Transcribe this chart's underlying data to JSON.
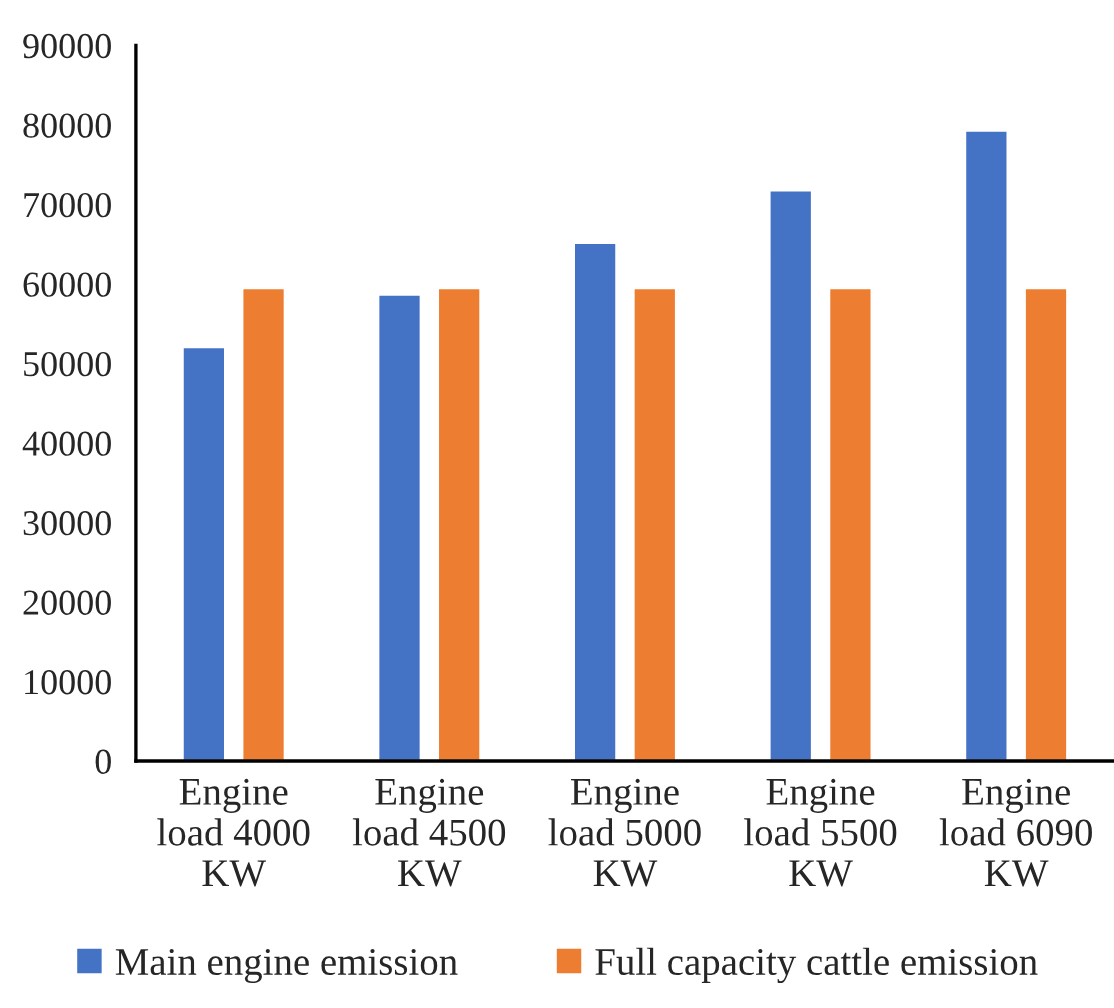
{
  "chart_data": {
    "type": "bar",
    "categories": [
      "Engine load 4000 KW",
      "Engine load 4500 KW",
      "Engine load 5000 KW",
      "Engine load 5500 KW",
      "Engine load 6090 KW"
    ],
    "series": [
      {
        "name": "Main engine emission",
        "color": "#4472c4",
        "values": [
          52100,
          58700,
          65200,
          71800,
          79300
        ]
      },
      {
        "name": "Full capacity cattle emission",
        "color": "#ed7d31",
        "values": [
          59500,
          59500,
          59500,
          59500,
          59500
        ]
      }
    ],
    "ylim": [
      0,
      90000
    ],
    "yticks": [
      0,
      10000,
      20000,
      30000,
      40000,
      50000,
      60000,
      70000,
      80000,
      90000
    ],
    "legend": "bottom",
    "grid": false
  }
}
